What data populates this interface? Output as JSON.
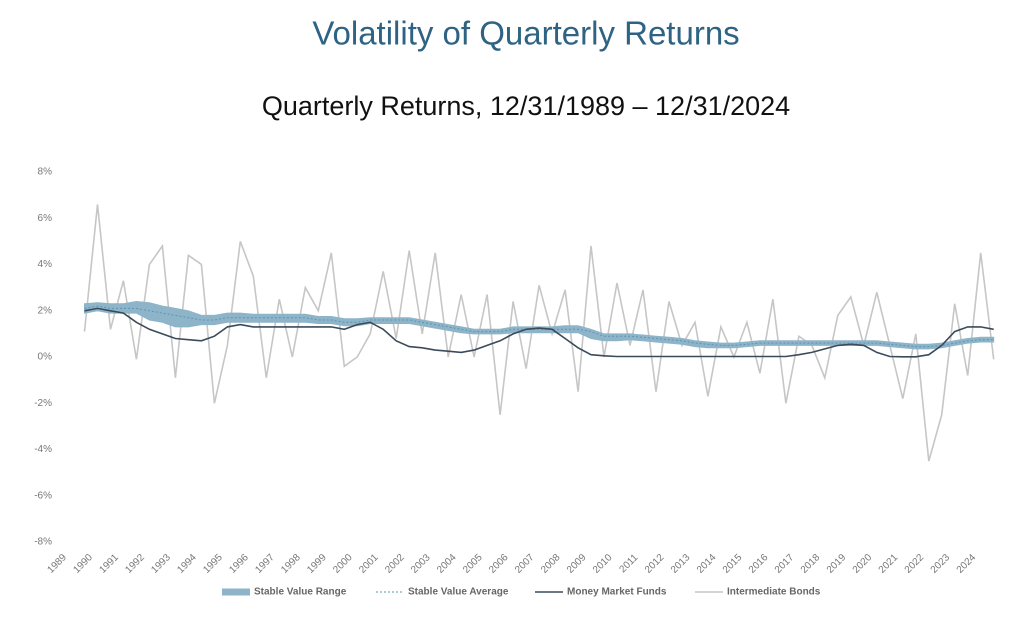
{
  "chart_data": {
    "type": "line",
    "title": "Volatility of Quarterly Returns",
    "subtitle": "Quarterly Returns, 12/31/1989 – 12/31/2024",
    "x": [
      1989.75,
      1990.25,
      1990.75,
      1991.25,
      1991.75,
      1992.25,
      1992.75,
      1993.25,
      1993.75,
      1994.25,
      1994.75,
      1995.25,
      1995.75,
      1996.25,
      1996.75,
      1997.25,
      1997.75,
      1998.25,
      1998.75,
      1999.25,
      1999.75,
      2000.25,
      2000.75,
      2001.25,
      2001.75,
      2002.25,
      2002.75,
      2003.25,
      2003.75,
      2004.25,
      2004.75,
      2005.25,
      2005.75,
      2006.25,
      2006.75,
      2007.25,
      2007.75,
      2008.25,
      2008.75,
      2009.25,
      2009.75,
      2010.25,
      2010.75,
      2011.25,
      2011.75,
      2012.25,
      2012.75,
      2013.25,
      2013.75,
      2014.25,
      2014.75,
      2015.25,
      2015.75,
      2016.25,
      2016.75,
      2017.25,
      2017.75,
      2018.25,
      2018.75,
      2019.25,
      2019.75,
      2020.25,
      2020.75,
      2021.25,
      2021.75,
      2022.25,
      2022.75,
      2023.25,
      2023.75,
      2024.25,
      2024.75
    ],
    "xlim": [
      1989,
      2024.8
    ],
    "xticks": [
      1989,
      1990,
      1991,
      1992,
      1993,
      1994,
      1995,
      1996,
      1997,
      1998,
      1999,
      2000,
      2001,
      2002,
      2003,
      2004,
      2005,
      2006,
      2007,
      2008,
      2009,
      2010,
      2011,
      2012,
      2013,
      2014,
      2015,
      2016,
      2017,
      2018,
      2019,
      2020,
      2021,
      2022,
      2023,
      2024
    ],
    "ylim": [
      -8,
      8
    ],
    "yticks": [
      {
        "value": 8,
        "label": "8%"
      },
      {
        "value": 6,
        "label": "6%"
      },
      {
        "value": 4,
        "label": "4%"
      },
      {
        "value": 2,
        "label": "2%"
      },
      {
        "value": 0,
        "label": "0%"
      },
      {
        "value": -2,
        "label": "-2%"
      },
      {
        "value": -4,
        "label": "-4%"
      },
      {
        "value": -6,
        "label": "-6%"
      },
      {
        "value": -8,
        "label": "-8%"
      }
    ],
    "grid": false,
    "legend": "bottom",
    "series": [
      {
        "name": "Stable Value Range",
        "color": "#8db4c8",
        "kind": "range",
        "low": [
          1.9,
          2.0,
          1.9,
          1.9,
          1.9,
          1.6,
          1.5,
          1.3,
          1.3,
          1.4,
          1.4,
          1.5,
          1.5,
          1.5,
          1.5,
          1.5,
          1.5,
          1.5,
          1.45,
          1.45,
          1.35,
          1.35,
          1.45,
          1.45,
          1.45,
          1.45,
          1.35,
          1.25,
          1.15,
          1.05,
          1.0,
          1.0,
          1.0,
          1.05,
          1.05,
          1.05,
          1.05,
          1.05,
          1.05,
          0.8,
          0.7,
          0.7,
          0.75,
          0.7,
          0.65,
          0.6,
          0.55,
          0.45,
          0.4,
          0.4,
          0.4,
          0.45,
          0.5,
          0.5,
          0.5,
          0.5,
          0.5,
          0.5,
          0.5,
          0.5,
          0.5,
          0.5,
          0.45,
          0.4,
          0.35,
          0.35,
          0.4,
          0.5,
          0.6,
          0.65,
          0.65
        ],
        "high": [
          2.3,
          2.35,
          2.3,
          2.3,
          2.4,
          2.35,
          2.2,
          2.1,
          2.0,
          1.8,
          1.8,
          1.9,
          1.9,
          1.85,
          1.85,
          1.85,
          1.85,
          1.85,
          1.75,
          1.75,
          1.65,
          1.65,
          1.7,
          1.7,
          1.7,
          1.7,
          1.6,
          1.5,
          1.4,
          1.3,
          1.2,
          1.2,
          1.2,
          1.3,
          1.3,
          1.3,
          1.3,
          1.35,
          1.35,
          1.2,
          1.0,
          1.0,
          1.0,
          0.95,
          0.9,
          0.85,
          0.8,
          0.7,
          0.65,
          0.6,
          0.6,
          0.65,
          0.7,
          0.7,
          0.7,
          0.7,
          0.7,
          0.7,
          0.7,
          0.7,
          0.7,
          0.7,
          0.65,
          0.6,
          0.55,
          0.55,
          0.6,
          0.7,
          0.8,
          0.85,
          0.85
        ]
      },
      {
        "name": "Stable Value Average",
        "color": "#5f94b3",
        "dash": true,
        "values": [
          2.1,
          2.2,
          2.1,
          2.1,
          2.1,
          2.0,
          1.9,
          1.8,
          1.7,
          1.6,
          1.6,
          1.7,
          1.7,
          1.7,
          1.7,
          1.7,
          1.7,
          1.7,
          1.6,
          1.6,
          1.5,
          1.5,
          1.6,
          1.6,
          1.6,
          1.6,
          1.5,
          1.4,
          1.3,
          1.2,
          1.1,
          1.1,
          1.1,
          1.2,
          1.2,
          1.2,
          1.2,
          1.2,
          1.2,
          1.1,
          0.9,
          0.9,
          0.9,
          0.85,
          0.8,
          0.75,
          0.7,
          0.6,
          0.55,
          0.5,
          0.5,
          0.55,
          0.6,
          0.6,
          0.6,
          0.6,
          0.6,
          0.6,
          0.6,
          0.6,
          0.6,
          0.6,
          0.55,
          0.5,
          0.45,
          0.45,
          0.5,
          0.6,
          0.7,
          0.75,
          0.75
        ]
      },
      {
        "name": "Money Market Funds",
        "color": "#3b4b5b",
        "values": [
          2.0,
          2.1,
          2.0,
          1.9,
          1.5,
          1.2,
          1.0,
          0.8,
          0.75,
          0.7,
          0.9,
          1.3,
          1.4,
          1.3,
          1.3,
          1.3,
          1.3,
          1.3,
          1.3,
          1.3,
          1.2,
          1.4,
          1.5,
          1.2,
          0.7,
          0.45,
          0.4,
          0.3,
          0.25,
          0.2,
          0.3,
          0.5,
          0.7,
          1.0,
          1.2,
          1.25,
          1.2,
          0.8,
          0.4,
          0.1,
          0.05,
          0.02,
          0.02,
          0.02,
          0.02,
          0.02,
          0.02,
          0.02,
          0.02,
          0.02,
          0.02,
          0.02,
          0.02,
          0.02,
          0.02,
          0.1,
          0.2,
          0.35,
          0.5,
          0.55,
          0.5,
          0.2,
          0.02,
          0.01,
          0.01,
          0.1,
          0.5,
          1.1,
          1.3,
          1.3,
          1.2
        ]
      },
      {
        "name": "Intermediate Bonds",
        "color": "#c6c6c6",
        "values": [
          1.1,
          6.6,
          1.2,
          3.3,
          -0.1,
          4.0,
          4.8,
          -0.9,
          4.4,
          4.0,
          -2.0,
          0.5,
          5.0,
          3.5,
          -0.9,
          2.5,
          0.0,
          3.0,
          2.0,
          4.5,
          -0.4,
          0.0,
          1.0,
          3.7,
          0.8,
          4.6,
          1.0,
          4.5,
          0.0,
          2.7,
          0.0,
          2.7,
          -2.5,
          2.4,
          -0.5,
          3.1,
          1.0,
          2.9,
          -1.5,
          4.8,
          0.0,
          3.2,
          0.5,
          2.9,
          -1.5,
          2.4,
          0.5,
          1.5,
          -1.7,
          1.3,
          0.0,
          1.5,
          -0.7,
          2.5,
          -2.0,
          0.9,
          0.5,
          -0.9,
          1.8,
          2.6,
          0.5,
          2.8,
          0.5,
          -1.8,
          1.0,
          -4.5,
          -2.5,
          2.3,
          -0.8,
          4.5,
          -0.1
        ]
      }
    ]
  }
}
